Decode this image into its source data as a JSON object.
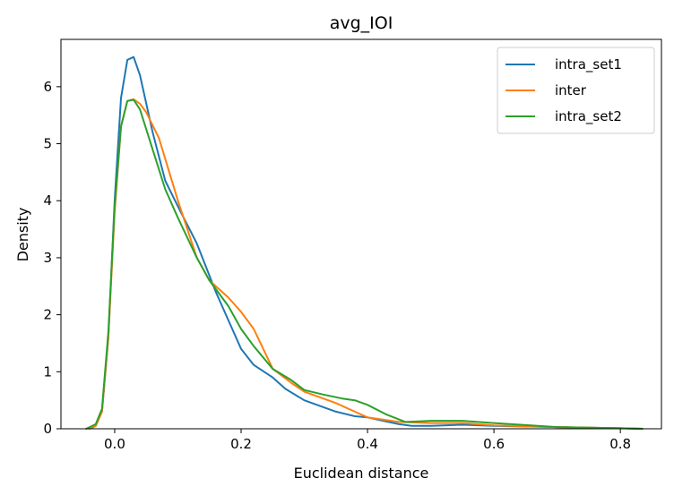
{
  "chart_data": {
    "type": "line",
    "title": "avg_IOI",
    "xlabel": "Euclidean distance",
    "ylabel": "Density",
    "xlim": [
      -0.085,
      0.865
    ],
    "ylim": [
      0,
      6.83
    ],
    "xticks": [
      0.0,
      0.2,
      0.4,
      0.6,
      0.8
    ],
    "xtick_labels": [
      "0.0",
      "0.2",
      "0.4",
      "0.6",
      "0.8"
    ],
    "yticks": [
      0,
      1,
      2,
      3,
      4,
      5,
      6
    ],
    "ytick_labels": [
      "0",
      "1",
      "2",
      "3",
      "4",
      "5",
      "6"
    ],
    "grid": false,
    "legend_position": "top-right",
    "series": [
      {
        "name": "intra_set1",
        "color": "#1f77b4",
        "x": [
          -0.04,
          -0.03,
          -0.02,
          -0.01,
          0.0,
          0.01,
          0.02,
          0.03,
          0.04,
          0.06,
          0.08,
          0.1,
          0.13,
          0.16,
          0.18,
          0.2,
          0.22,
          0.25,
          0.27,
          0.3,
          0.35,
          0.38,
          0.4,
          0.42,
          0.45,
          0.47,
          0.5,
          0.55,
          0.6,
          0.7,
          0.8,
          0.835
        ],
        "y": [
          0.0,
          0.05,
          0.3,
          1.6,
          4.0,
          5.8,
          6.47,
          6.52,
          6.2,
          5.2,
          4.35,
          3.9,
          3.25,
          2.4,
          1.9,
          1.4,
          1.12,
          0.9,
          0.7,
          0.5,
          0.3,
          0.22,
          0.2,
          0.15,
          0.08,
          0.05,
          0.05,
          0.07,
          0.05,
          0.03,
          0.01,
          0.0
        ]
      },
      {
        "name": "inter",
        "color": "#ff7f0e",
        "x": [
          -0.045,
          -0.03,
          -0.02,
          -0.01,
          0.0,
          0.01,
          0.02,
          0.03,
          0.04,
          0.05,
          0.07,
          0.1,
          0.13,
          0.15,
          0.18,
          0.2,
          0.22,
          0.25,
          0.28,
          0.3,
          0.35,
          0.38,
          0.4,
          0.45,
          0.5,
          0.55,
          0.6,
          0.7,
          0.8,
          0.835
        ],
        "y": [
          0.0,
          0.05,
          0.3,
          1.6,
          3.8,
          5.3,
          5.75,
          5.78,
          5.7,
          5.55,
          5.1,
          4.0,
          3.0,
          2.6,
          2.3,
          2.05,
          1.75,
          1.05,
          0.8,
          0.65,
          0.45,
          0.3,
          0.2,
          0.12,
          0.1,
          0.1,
          0.06,
          0.03,
          0.01,
          0.0
        ]
      },
      {
        "name": "intra_set2",
        "color": "#2ca02c",
        "x": [
          -0.045,
          -0.03,
          -0.02,
          -0.01,
          0.0,
          0.01,
          0.02,
          0.03,
          0.04,
          0.06,
          0.08,
          0.1,
          0.13,
          0.15,
          0.18,
          0.2,
          0.22,
          0.25,
          0.28,
          0.3,
          0.33,
          0.36,
          0.38,
          0.4,
          0.43,
          0.46,
          0.5,
          0.55,
          0.6,
          0.7,
          0.8,
          0.835
        ],
        "y": [
          0.0,
          0.08,
          0.35,
          1.7,
          3.9,
          5.3,
          5.75,
          5.77,
          5.6,
          4.9,
          4.2,
          3.7,
          3.0,
          2.6,
          2.15,
          1.75,
          1.45,
          1.05,
          0.85,
          0.68,
          0.6,
          0.53,
          0.5,
          0.42,
          0.25,
          0.12,
          0.14,
          0.14,
          0.1,
          0.03,
          0.01,
          0.0
        ]
      }
    ]
  }
}
